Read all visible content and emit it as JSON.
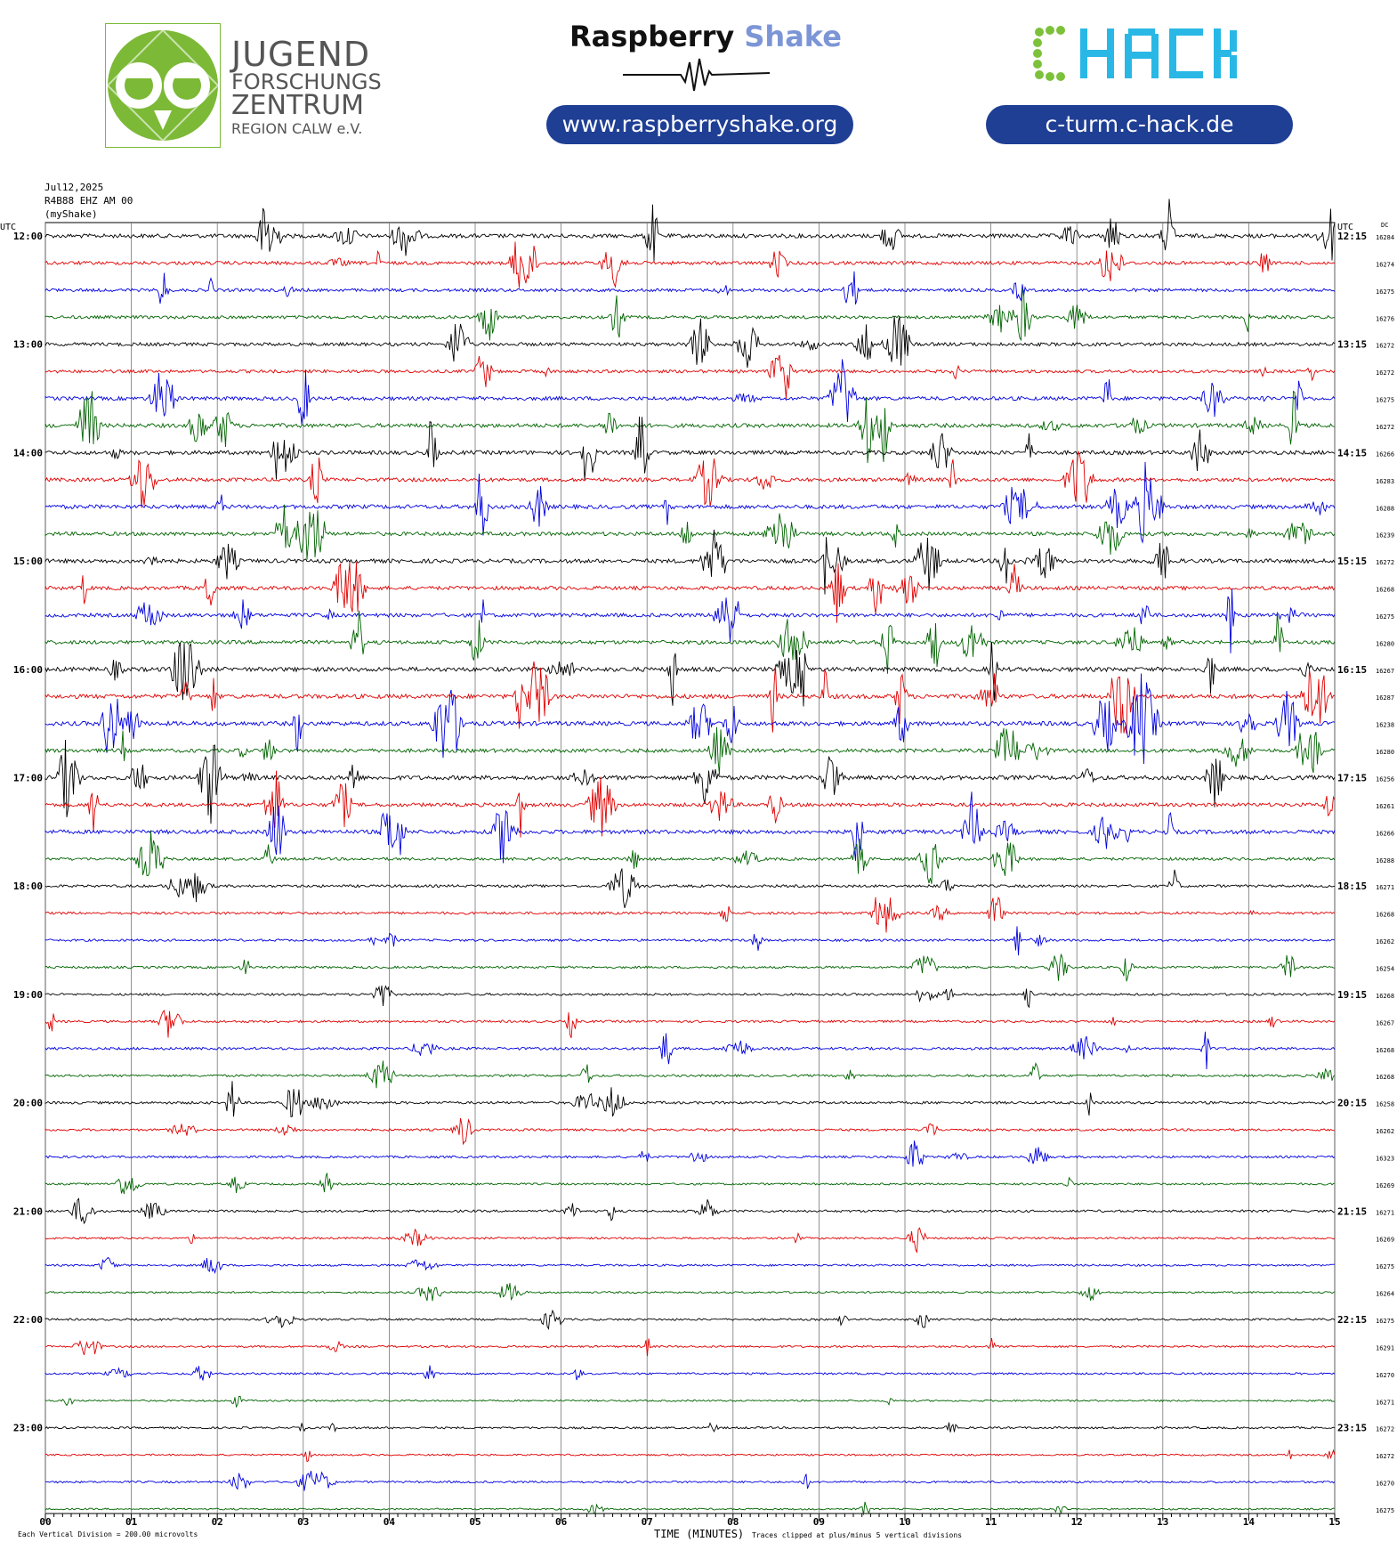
{
  "header": {
    "jfz": {
      "line1": "JUGEND",
      "line2": "FORSCHUNGS",
      "line3": "ZENTRUM",
      "line4": "REGION CALW e.V."
    },
    "raspberry": {
      "brand": "Raspberry",
      "shake": "Shake",
      "url": "www.raspberryshake.org"
    },
    "chack": {
      "logo_text": "CHACK",
      "url": "c-turm.c-hack.de"
    },
    "colors": {
      "jfz_green": "#7cb937",
      "pill_blue": "#1f3f95",
      "shake_blue": "#7c95d6",
      "chack_green": "#7cc13a",
      "chack_cyan": "#29b8e6"
    }
  },
  "meta": {
    "date": "Jul12,2025",
    "channel": "R4B88 EHZ AM 00",
    "source": "(myShake)"
  },
  "chart_data": {
    "type": "line",
    "title": "",
    "xlabel": "TIME (MINUTES)",
    "left_axis_label": "UTC",
    "right_axis_label": "UTC",
    "dc_label": "DC",
    "xlim": [
      0,
      15
    ],
    "x_ticks": [
      "00",
      "01",
      "02",
      "03",
      "04",
      "05",
      "06",
      "07",
      "08",
      "09",
      "10",
      "11",
      "12",
      "13",
      "14",
      "15"
    ],
    "trace_colors": [
      "#000000",
      "#e00000",
      "#0000e0",
      "#006400"
    ],
    "rows_per_hour": 4,
    "minutes_per_row": 15,
    "left_hour_labels": [
      "12:00",
      "13:00",
      "14:00",
      "15:00",
      "16:00",
      "17:00",
      "18:00",
      "19:00",
      "20:00",
      "21:00",
      "22:00",
      "23:00"
    ],
    "right_hour_labels": [
      "12:15",
      "13:15",
      "14:15",
      "15:15",
      "16:15",
      "17:15",
      "18:15",
      "19:15",
      "20:15",
      "21:15",
      "22:15",
      "23:15"
    ],
    "dc_offsets": [
      "16284",
      "16274",
      "16275",
      "16276",
      "16272",
      "16272",
      "16275",
      "16272",
      "16266",
      "16283",
      "16288",
      "16239",
      "16272",
      "16268",
      "16275",
      "16280",
      "16267",
      "16287",
      "16238",
      "16280",
      "16256",
      "16261",
      "16266",
      "16288",
      "16271",
      "16268",
      "16262",
      "16254",
      "16268",
      "16267",
      "16268",
      "16268",
      "16258",
      "16262",
      "16323",
      "16269",
      "16271",
      "16269",
      "16275",
      "16264",
      "16275",
      "16291",
      "16270",
      "16271",
      "16272",
      "16272",
      "16270",
      "16275"
    ],
    "activity_level": [
      0.9,
      0.7,
      0.6,
      0.6,
      0.7,
      0.6,
      0.8,
      0.9,
      0.9,
      0.8,
      0.9,
      0.8,
      0.9,
      0.8,
      0.8,
      0.8,
      1.0,
      1.0,
      1.0,
      0.8,
      1.0,
      0.8,
      0.9,
      0.5,
      0.4,
      0.4,
      0.3,
      0.3,
      0.3,
      0.3,
      0.4,
      0.3,
      0.4,
      0.3,
      0.3,
      0.2,
      0.3,
      0.2,
      0.2,
      0.15,
      0.2,
      0.2,
      0.2,
      0.1,
      0.2,
      0.1,
      0.2,
      0.1
    ],
    "footer_scale": "Each Vertical Division =  200.00 microvolts",
    "footer_clip": "Traces clipped at plus/minus 5 vertical divisions"
  }
}
